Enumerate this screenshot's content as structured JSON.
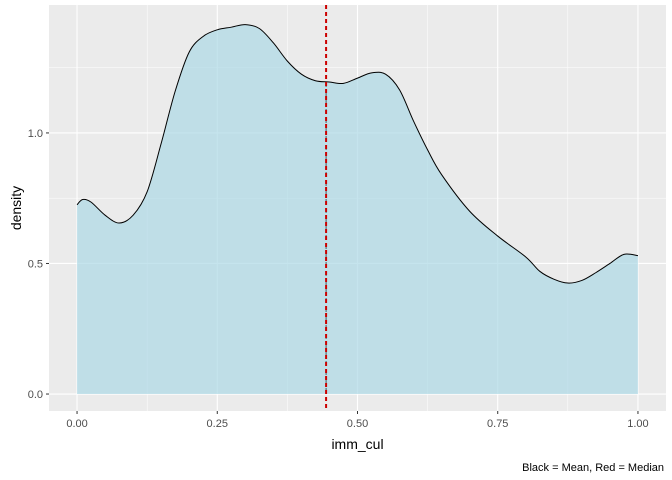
{
  "chart_data": {
    "type": "area",
    "xlabel": "imm_cul",
    "ylabel": "density",
    "caption": "Black = Mean, Red = Median",
    "xlim": [
      -0.05,
      1.05
    ],
    "ylim": [
      -0.065,
      1.49
    ],
    "x_ticks": [
      0.0,
      0.25,
      0.5,
      0.75,
      1.0
    ],
    "x_tick_labels": [
      "0.00",
      "0.25",
      "0.50",
      "0.75",
      "1.00"
    ],
    "y_ticks": [
      0.0,
      0.5,
      1.0
    ],
    "y_tick_labels": [
      "0.0",
      "0.5",
      "1.0"
    ],
    "grid": true,
    "fill_color": "#add8e6",
    "line_color": "#000000",
    "panel_background": "#ebebeb",
    "mean": 0.444,
    "median": 0.444,
    "mean_line_color": "#000000",
    "median_line_color": "#cc0000",
    "series": [
      {
        "x": [
          0.0,
          0.01,
          0.025,
          0.05,
          0.075,
          0.1,
          0.125,
          0.15,
          0.175,
          0.2,
          0.225,
          0.25,
          0.275,
          0.3,
          0.325,
          0.35,
          0.375,
          0.4,
          0.425,
          0.45,
          0.475,
          0.5,
          0.525,
          0.55,
          0.575,
          0.6,
          0.625,
          0.65,
          0.7,
          0.75,
          0.8,
          0.825,
          0.85,
          0.875,
          0.9,
          0.925,
          0.95,
          0.975,
          1.0
        ],
        "y": [
          0.725,
          0.745,
          0.735,
          0.685,
          0.655,
          0.685,
          0.775,
          0.96,
          1.16,
          1.31,
          1.37,
          1.395,
          1.405,
          1.415,
          1.4,
          1.345,
          1.275,
          1.225,
          1.2,
          1.195,
          1.19,
          1.21,
          1.23,
          1.225,
          1.165,
          1.045,
          0.935,
          0.84,
          0.7,
          0.605,
          0.525,
          0.47,
          0.44,
          0.425,
          0.435,
          0.465,
          0.5,
          0.535,
          0.53
        ]
      }
    ]
  }
}
